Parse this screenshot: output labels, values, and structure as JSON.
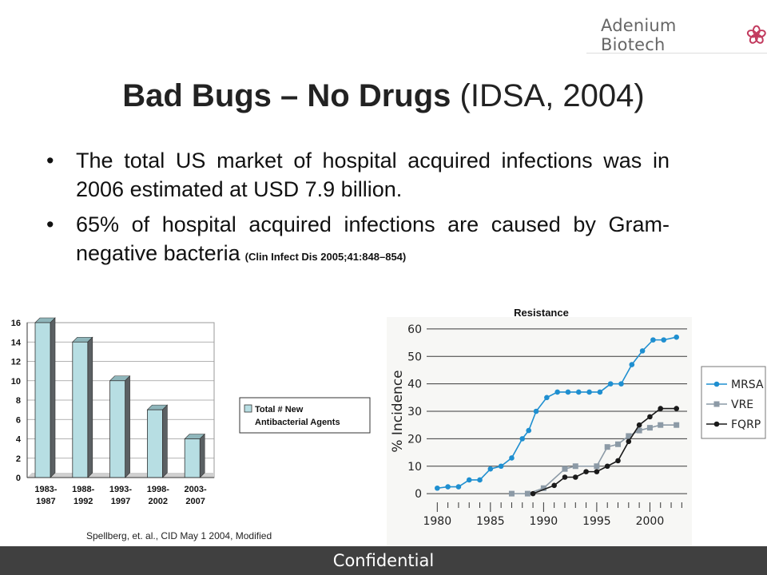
{
  "logo": {
    "text": "Adenium Biotech"
  },
  "title": {
    "bold": "Bad Bugs – No Drugs",
    "rest": " (IDSA, 2004)"
  },
  "bullets": [
    {
      "text": "The total US market of hospital acquired infections was in 2006 estimated at USD 7.9 billion.",
      "cite": ""
    },
    {
      "text": "65% of hospital acquired infections are caused by Gram-negative bacteria",
      "cite": "(Clin Infect Dis 2005;41:848–854)"
    }
  ],
  "bullet_char": "•",
  "footer": {
    "text": "Confidential"
  },
  "colors": {
    "bar_fill": "#b7dee3",
    "bar_side": "#5b6063",
    "mrsa": "#1f8fd0",
    "vre": "#8c9aa6",
    "fqrp": "#1a1a1a",
    "footer": "#404040"
  },
  "chart_data": [
    {
      "type": "bar",
      "categories": [
        "1983-\n1987",
        "1988-\n1992",
        "1993-\n1997",
        "1998-\n2002",
        "2003-\n2007"
      ],
      "values": [
        16,
        14,
        10,
        7,
        4
      ],
      "ylim": [
        0,
        16
      ],
      "yticks": [
        "0",
        "2",
        "4",
        "6",
        "8",
        "10",
        "12",
        "14",
        "16"
      ],
      "legend": "Total # New\nAntibacterial Agents",
      "legend_position": "right",
      "grid": true,
      "source": "Spellberg, et. al., CID May 1 2004, Modified"
    },
    {
      "type": "line",
      "title": "Resistance",
      "ylabel": "% Incidence",
      "xlim": [
        1979,
        2003.5
      ],
      "ylim": [
        -2,
        62
      ],
      "xticks": [
        "1980",
        "1985",
        "1990",
        "1995",
        "2000"
      ],
      "yticks": [
        "0",
        "10",
        "20",
        "30",
        "40",
        "50",
        "60"
      ],
      "grid": true,
      "legend_position": "right",
      "series": [
        {
          "name": "MRSA",
          "marker": "circle",
          "points": [
            [
              1980,
              2
            ],
            [
              1981,
              2.5
            ],
            [
              1982,
              2.5
            ],
            [
              1983,
              5
            ],
            [
              1984,
              5
            ],
            [
              1985,
              9
            ],
            [
              1986,
              10
            ],
            [
              1987,
              13
            ],
            [
              1988,
              20
            ],
            [
              1988.6,
              23
            ],
            [
              1989.3,
              30
            ],
            [
              1990.3,
              35
            ],
            [
              1991.3,
              37
            ],
            [
              1992.3,
              37
            ],
            [
              1993.3,
              37
            ],
            [
              1994.3,
              37
            ],
            [
              1995.3,
              37
            ],
            [
              1996.3,
              40
            ],
            [
              1997.3,
              40
            ],
            [
              1998.3,
              47
            ],
            [
              1999.3,
              52
            ],
            [
              2000.3,
              56
            ],
            [
              2001.3,
              56
            ],
            [
              2002.5,
              57
            ]
          ]
        },
        {
          "name": "VRE",
          "marker": "square",
          "points": [
            [
              1987,
              0
            ],
            [
              1988.5,
              0
            ],
            [
              1990,
              2
            ],
            [
              1992,
              9
            ],
            [
              1993,
              10
            ],
            [
              1995,
              10
            ],
            [
              1996,
              17
            ],
            [
              1997,
              18
            ],
            [
              1998,
              21
            ],
            [
              1999,
              23
            ],
            [
              2000,
              24
            ],
            [
              2001,
              25
            ],
            [
              2002.5,
              25
            ]
          ]
        },
        {
          "name": "FQRP",
          "marker": "circle",
          "points": [
            [
              1989,
              0
            ],
            [
              1991,
              3
            ],
            [
              1992,
              6
            ],
            [
              1993,
              6
            ],
            [
              1994,
              8
            ],
            [
              1995,
              8
            ],
            [
              1996,
              10
            ],
            [
              1997,
              12
            ],
            [
              1998,
              19
            ],
            [
              1999,
              25
            ],
            [
              2000,
              28
            ],
            [
              2001,
              31
            ],
            [
              2002.5,
              31
            ]
          ]
        }
      ]
    }
  ]
}
